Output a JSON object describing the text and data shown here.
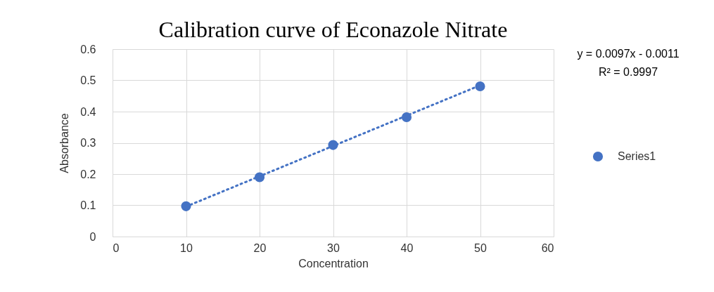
{
  "chart_data": {
    "type": "scatter",
    "title": "Calibration curve of Econazole Nitrate",
    "xlabel": "Concentration",
    "ylabel": "Absorbance",
    "x": [
      10,
      20,
      30,
      40,
      50
    ],
    "series": [
      {
        "name": "Series1",
        "color": "#4472c4",
        "values": [
          0.097,
          0.19,
          0.293,
          0.382,
          0.481
        ],
        "marker": "circle"
      },
      {
        "type": "line",
        "color": "#4472c4",
        "line_style": "dotted",
        "marker": "none",
        "x": [
          10,
          50
        ],
        "values": [
          0.096,
          0.484
        ]
      }
    ],
    "xlim": [
      0,
      60
    ],
    "xticks": [
      0,
      10,
      20,
      30,
      40,
      50,
      60
    ],
    "ylim": [
      0,
      0.6
    ],
    "yticks": [
      0,
      0.1,
      0.2,
      0.3,
      0.4,
      0.5,
      0.6
    ],
    "grid": true,
    "legend": "right",
    "annotations": [
      "y = 0.0097x - 0.0011",
      "R² = 0.9997"
    ]
  }
}
